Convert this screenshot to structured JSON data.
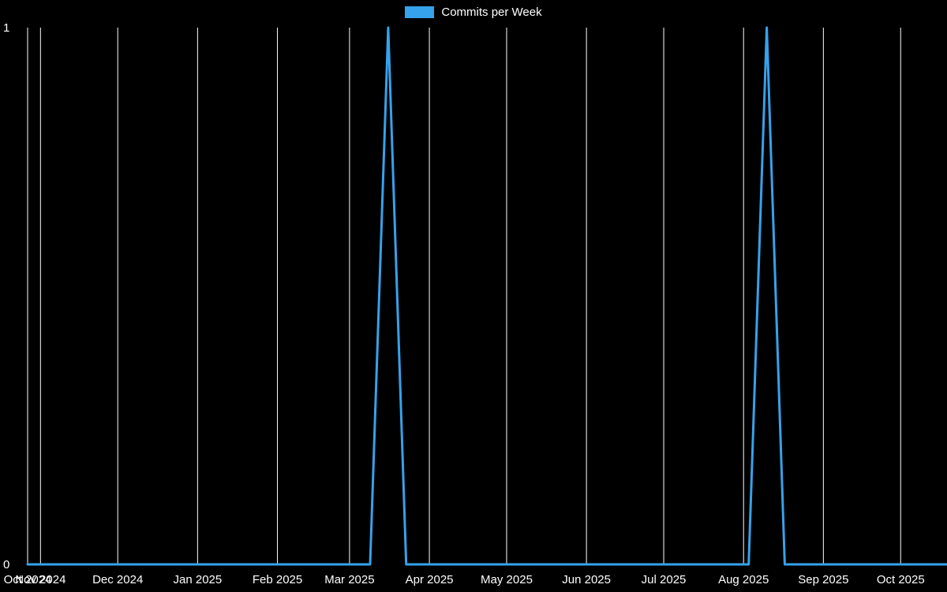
{
  "legend": {
    "label": "Commits per Week",
    "position": "top"
  },
  "chart_data": {
    "type": "line",
    "series": [
      {
        "name": "Commits per Week",
        "start_date": "2024-10-27",
        "interval_days": 7,
        "values": [
          0,
          0,
          0,
          0,
          0,
          0,
          0,
          0,
          0,
          0,
          0,
          0,
          0,
          0,
          0,
          0,
          0,
          0,
          0,
          0,
          1,
          0,
          0,
          0,
          0,
          0,
          0,
          0,
          0,
          0,
          0,
          0,
          0,
          0,
          0,
          0,
          0,
          0,
          0,
          0,
          0,
          1,
          0,
          0,
          0,
          0,
          0,
          0,
          0,
          0,
          0,
          0
        ]
      }
    ],
    "x_domain": [
      "2024-10-27",
      "2025-10-19"
    ],
    "ylim": [
      0,
      1
    ],
    "y_ticks": [
      1,
      0
    ],
    "x_ticks": [
      {
        "label": "Oct 2024",
        "date": "2024-10-27"
      },
      {
        "label": "Nov 2024",
        "date": "2024-11-01"
      },
      {
        "label": "Dec 2024",
        "date": "2024-12-01"
      },
      {
        "label": "Jan 2025",
        "date": "2025-01-01"
      },
      {
        "label": "Feb 2025",
        "date": "2025-02-01"
      },
      {
        "label": "Mar 2025",
        "date": "2025-03-01"
      },
      {
        "label": "Apr 2025",
        "date": "2025-04-01"
      },
      {
        "label": "May 2025",
        "date": "2025-05-01"
      },
      {
        "label": "Jun 2025",
        "date": "2025-06-01"
      },
      {
        "label": "Jul 2025",
        "date": "2025-07-01"
      },
      {
        "label": "Aug 2025",
        "date": "2025-08-01"
      },
      {
        "label": "Sep 2025",
        "date": "2025-09-01"
      },
      {
        "label": "Oct 2025",
        "date": "2025-10-01"
      }
    ],
    "colors": {
      "line": "#36A2EB",
      "grid": "#ffffff",
      "background": "#000000",
      "text": "#ffffff"
    },
    "grid": "vertical-only",
    "legend_position": "top"
  }
}
